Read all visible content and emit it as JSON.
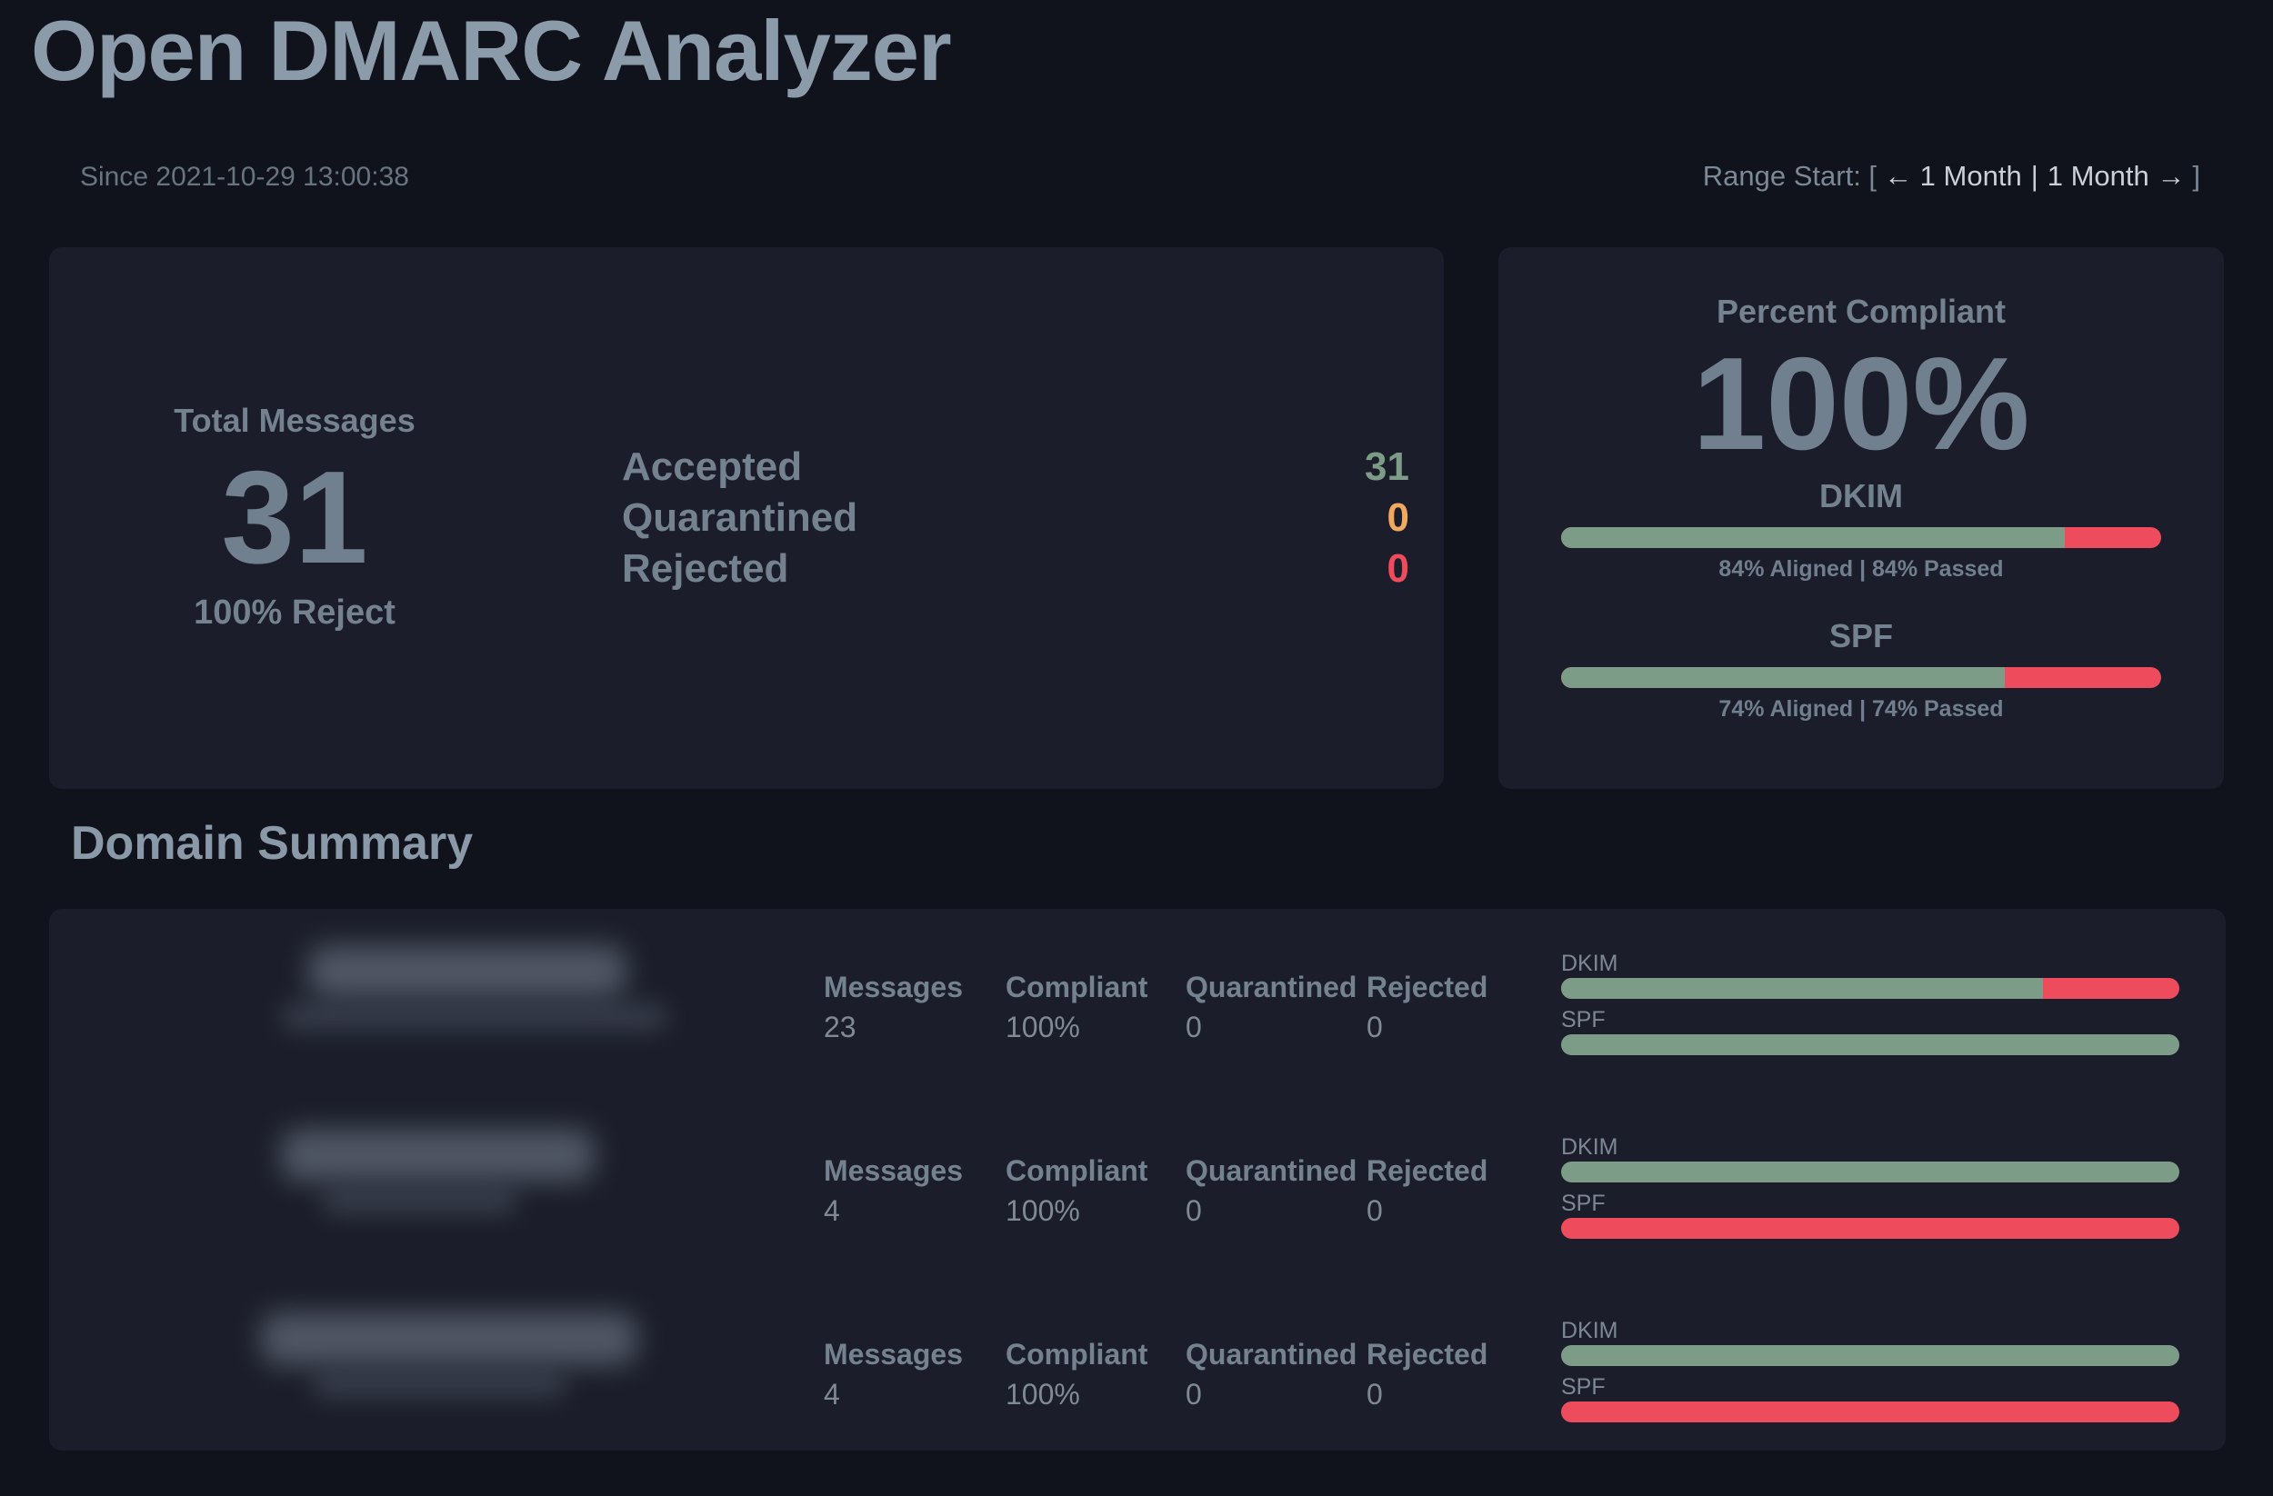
{
  "app": {
    "title": "Open DMARC Analyzer"
  },
  "header": {
    "since": "Since 2021-10-29 13:00:38",
    "range": {
      "prefix": "Range Start: [",
      "prev": "← 1 Month",
      "separator": "|",
      "next": "1 Month →",
      "suffix": "]"
    }
  },
  "totals": {
    "title": "Total Messages",
    "count": "31",
    "policy": "100% Reject",
    "dispositions": [
      {
        "label": "Accepted",
        "value": "31"
      },
      {
        "label": "Quarantined",
        "value": "0"
      },
      {
        "label": "Rejected",
        "value": "0"
      }
    ]
  },
  "compliance": {
    "title": "Percent Compliant",
    "percent": "100%",
    "meters": [
      {
        "label": "DKIM",
        "pct": 84,
        "caption": "84% Aligned | 84% Passed"
      },
      {
        "label": "SPF",
        "pct": 74,
        "caption": "74% Aligned | 74% Passed"
      }
    ]
  },
  "domain_summary": {
    "title": "Domain Summary",
    "columns": [
      "Messages",
      "Compliant",
      "Quarantined",
      "Rejected"
    ],
    "meter_labels": [
      "DKIM",
      "SPF"
    ],
    "rows": [
      {
        "domain_redacted": true,
        "stats": [
          "23",
          "100%",
          "0",
          "0"
        ],
        "dkim_pct": 78,
        "spf_pct": 100
      },
      {
        "domain_redacted": true,
        "stats": [
          "4",
          "100%",
          "0",
          "0"
        ],
        "dkim_pct": 100,
        "spf_pct": 0
      },
      {
        "domain_redacted": true,
        "stats": [
          "4",
          "100%",
          "0",
          "0"
        ],
        "dkim_pct": 100,
        "spf_pct": 0
      }
    ]
  },
  "colors": {
    "page_background": "#10121c",
    "card_background": "#1b1e2a",
    "pass_green": "#7d9c87",
    "quarantine_orange": "#f0a95f",
    "fail_red": "#ee4b5c",
    "heading_grey": "#8c9ba9"
  }
}
